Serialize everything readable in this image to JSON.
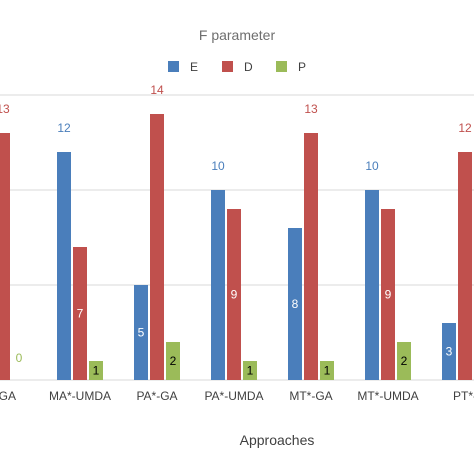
{
  "chart_data": {
    "type": "bar",
    "title": "F parameter",
    "xlabel": "Approaches",
    "ylabel": "",
    "categories": [
      "MA*-GA",
      "MA*-UMDA",
      "PA*-GA",
      "PA*-UMDA",
      "MT*-GA",
      "MT*-UMDA",
      "PT*-GA"
    ],
    "tick_labels_shown": [
      "*-GA",
      "MA*-UMDA",
      "PA*-GA",
      "PA*-UMDA",
      "MT*-GA",
      "MT*-UMDA",
      "PT*-"
    ],
    "series": [
      {
        "name": "E",
        "color": "#4a7ebb",
        "values": [
          null,
          12,
          5,
          10,
          8,
          10,
          3
        ]
      },
      {
        "name": "D",
        "color": "#c0504d",
        "values": [
          13,
          7,
          14,
          9,
          13,
          9,
          12
        ]
      },
      {
        "name": "P",
        "color": "#9bbb59",
        "values": [
          0,
          1,
          2,
          1,
          1,
          2,
          null
        ]
      }
    ],
    "ylim": [
      0,
      14
    ],
    "grid": true,
    "legend_position": "top-center"
  }
}
